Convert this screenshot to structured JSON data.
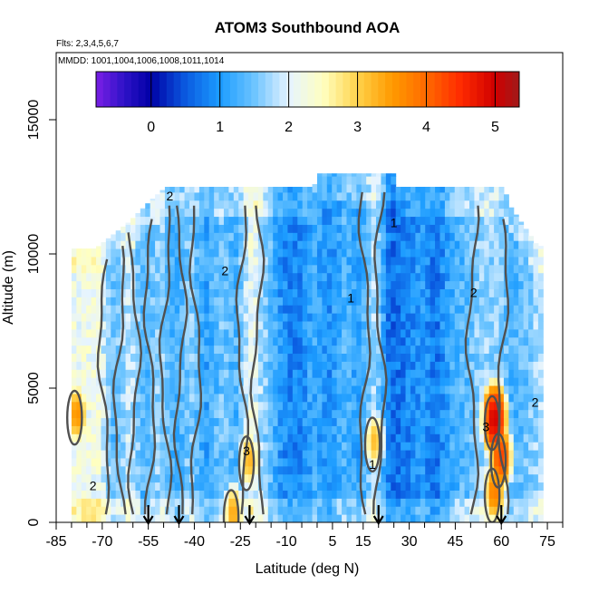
{
  "chart_data": {
    "type": "heatmap",
    "title": "ATOM3 Southbound AOA",
    "flights_note": "Flts: 2,3,4,5,6,7",
    "dates_note": "MMDD: 1001,1004,1006,1008,1011,1014",
    "xlabel": "Latitude (deg N)",
    "ylabel": "Altitude (m)",
    "xlim": [
      -85,
      80
    ],
    "ylim": [
      0,
      17500
    ],
    "x_tick_labels": [
      -85,
      -70,
      -55,
      -40,
      -25,
      -10,
      5,
      15,
      30,
      45,
      60,
      75
    ],
    "y_tick_labels": [
      0,
      5000,
      10000,
      15000
    ],
    "colorbar": {
      "range": [
        -0.8,
        5.35
      ],
      "ticks": [
        0,
        1,
        2,
        3,
        4,
        5
      ],
      "stops": [
        {
          "v": -0.8,
          "c": "#7b1fe6"
        },
        {
          "v": -0.4,
          "c": "#2f13c8"
        },
        {
          "v": 0.0,
          "c": "#0000a6"
        },
        {
          "v": 0.5,
          "c": "#0a5ae0"
        },
        {
          "v": 1.0,
          "c": "#1c9cff"
        },
        {
          "v": 1.5,
          "c": "#6cc4ff"
        },
        {
          "v": 2.0,
          "c": "#e6f4ff"
        },
        {
          "v": 2.5,
          "c": "#ffffc0"
        },
        {
          "v": 3.0,
          "c": "#ffd24a"
        },
        {
          "v": 3.5,
          "c": "#ff9a00"
        },
        {
          "v": 4.0,
          "c": "#ff6a00"
        },
        {
          "v": 4.5,
          "c": "#ff2a00"
        },
        {
          "v": 5.0,
          "c": "#cf0000"
        },
        {
          "v": 5.35,
          "c": "#a11a1a"
        }
      ]
    },
    "age_by_latitude": [
      {
        "lat": -72,
        "age": 2.2
      },
      {
        "lat": -67,
        "age": 1.4
      },
      {
        "lat": -62,
        "age": 1.9
      },
      {
        "lat": -57,
        "age": 1.3
      },
      {
        "lat": -52,
        "age": 1.7
      },
      {
        "lat": -47,
        "age": 1.2
      },
      {
        "lat": -42,
        "age": 1.6
      },
      {
        "lat": -37,
        "age": 1.1
      },
      {
        "lat": -32,
        "age": 1.5
      },
      {
        "lat": -27,
        "age": 1.3
      },
      {
        "lat": -22,
        "age": 2.2
      },
      {
        "lat": -17,
        "age": 1.5
      },
      {
        "lat": -12,
        "age": 0.9
      },
      {
        "lat": -7,
        "age": 0.8
      },
      {
        "lat": -2,
        "age": 1.2
      },
      {
        "lat": 3,
        "age": 0.9
      },
      {
        "lat": 8,
        "age": 1.3
      },
      {
        "lat": 13,
        "age": 1.1
      },
      {
        "lat": 18,
        "age": 1.8
      },
      {
        "lat": 23,
        "age": 0.6
      },
      {
        "lat": 28,
        "age": 0.8
      },
      {
        "lat": 33,
        "age": 1.0
      },
      {
        "lat": 38,
        "age": 0.7
      },
      {
        "lat": 43,
        "age": 1.2
      },
      {
        "lat": 48,
        "age": 1.4
      },
      {
        "lat": 53,
        "age": 1.7
      },
      {
        "lat": 58,
        "age": 1.6
      },
      {
        "lat": 63,
        "age": 1.3
      },
      {
        "lat": 68,
        "age": 1.5
      },
      {
        "lat": 72,
        "age": 1.8
      }
    ],
    "top_altitude_by_latitude": [
      {
        "lat": -73,
        "top": 10200
      },
      {
        "lat": -62,
        "top": 11200
      },
      {
        "lat": -55,
        "top": 12000
      },
      {
        "lat": -50,
        "top": 12500
      },
      {
        "lat": -2,
        "top": 12500
      },
      {
        "lat": 0,
        "top": 13000
      },
      {
        "lat": 24,
        "top": 13000
      },
      {
        "lat": 25,
        "top": 12500
      },
      {
        "lat": 60,
        "top": 12500
      },
      {
        "lat": 62,
        "top": 11800
      },
      {
        "lat": 71,
        "top": 10300
      }
    ],
    "hotspots": [
      {
        "lat": 59,
        "alt": 2300,
        "age": 4.3
      },
      {
        "lat": 57,
        "alt": 3700,
        "age": 5.0
      },
      {
        "lat": 57,
        "alt": 1000,
        "age": 3.8
      },
      {
        "lat": -79,
        "alt": 3900,
        "age": 3.6
      },
      {
        "lat": -23,
        "alt": 2200,
        "age": 3.3
      },
      {
        "lat": 18,
        "alt": 2900,
        "age": 3.2
      },
      {
        "lat": -28,
        "alt": 200,
        "age": 3.4
      }
    ],
    "contour_labels": [
      {
        "text": "2",
        "lat": -48,
        "alt": 12000
      },
      {
        "text": "2",
        "lat": -30,
        "alt": 9200
      },
      {
        "text": "1",
        "lat": 25,
        "alt": 11000
      },
      {
        "text": "2",
        "lat": 51,
        "alt": 8400
      },
      {
        "text": "1",
        "lat": 11,
        "alt": 8200
      },
      {
        "text": "3",
        "lat": -23,
        "alt": 2500
      },
      {
        "text": "3",
        "lat": 55,
        "alt": 3400
      },
      {
        "text": "2",
        "lat": -73,
        "alt": 1200
      },
      {
        "text": "2",
        "lat": 71,
        "alt": 4300
      },
      {
        "text": "1",
        "lat": 18,
        "alt": 2000
      }
    ],
    "flight_profile_latitudes": [
      -55,
      -45,
      -22,
      20,
      60
    ]
  }
}
